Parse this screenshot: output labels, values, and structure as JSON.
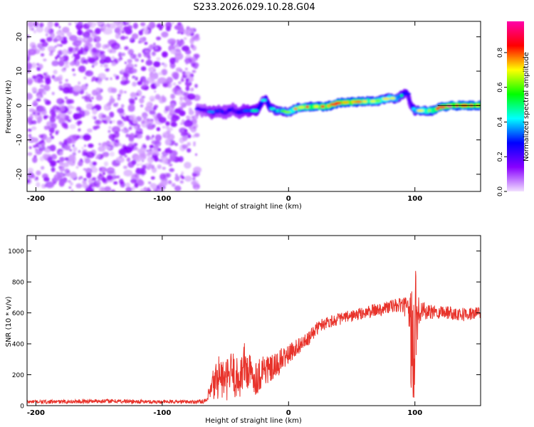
{
  "title": "S233.2026.029.10.28.G04",
  "chart_data": [
    {
      "type": "heatmap",
      "panel": "spectrogram",
      "xlabel": "Height of straight line (km)",
      "ylabel": "Frequency (Hz)",
      "xlim": [
        -207,
        152
      ],
      "ylim": [
        -25,
        24.5
      ],
      "xticks": [
        -200,
        -100,
        0,
        100
      ],
      "xtick_labels": [
        "-200",
        "-100",
        "0",
        "100"
      ],
      "yticks": [
        -20,
        -10,
        0,
        10,
        20
      ],
      "ytick_labels": [
        "-20",
        "-10",
        "0",
        "10",
        "20"
      ],
      "colorbar": {
        "label": "Normalized spectral amplitude",
        "range": [
          0,
          0.98
        ],
        "ticks": [
          0.0,
          0.2,
          0.4,
          0.6,
          0.8
        ],
        "tick_labels": [
          "0.0",
          "0.2",
          "0.4",
          "0.6",
          "0.8"
        ],
        "colormap": [
          "#f2e0ff",
          "#8800ff",
          "#0000ff",
          "#00ffff",
          "#00ff00",
          "#ffff00",
          "#ff0000",
          "#ff00aa"
        ]
      },
      "noise_region_x": [
        -207,
        -72
      ],
      "signal_track": {
        "x": [
          -72,
          -65,
          -60,
          -55,
          -50,
          -45,
          -40,
          -35,
          -30,
          -25,
          -20,
          -18,
          -15,
          -10,
          -5,
          0,
          5,
          10,
          20,
          30,
          40,
          50,
          60,
          70,
          80,
          85,
          90,
          93,
          95,
          97,
          100,
          105,
          110,
          115,
          120,
          130,
          140,
          152
        ],
        "y": [
          -1,
          -1.5,
          -2,
          -1.5,
          -2,
          -1,
          -2,
          -1.5,
          -1.5,
          -1.5,
          1.5,
          2,
          -0.5,
          -1.5,
          -1.5,
          -2,
          -1,
          -0.5,
          -0.3,
          -0.3,
          0.8,
          1.0,
          1.2,
          1.3,
          2.2,
          2.0,
          3.0,
          4.0,
          2.5,
          0,
          -1.5,
          -1.5,
          -1.5,
          -1.5,
          -0.5,
          0,
          0,
          0
        ],
        "amplitude": [
          0.2,
          0.25,
          0.35,
          0.3,
          0.3,
          0.3,
          0.3,
          0.35,
          0.4,
          0.45,
          0.4,
          0.35,
          0.45,
          0.5,
          0.55,
          0.6,
          0.7,
          0.75,
          0.8,
          0.8,
          0.85,
          0.85,
          0.75,
          0.7,
          0.65,
          0.6,
          0.5,
          0.35,
          0.3,
          0.3,
          0.55,
          0.65,
          0.7,
          0.75,
          0.85,
          0.9,
          0.9,
          0.85
        ]
      }
    },
    {
      "type": "line",
      "panel": "snr",
      "xlabel": "Height of straight line (km)",
      "ylabel": "SNR (10 * v/v)",
      "xlim": [
        -207,
        152
      ],
      "ylim": [
        0,
        1100
      ],
      "xticks": [
        -200,
        -100,
        0,
        100
      ],
      "xtick_labels": [
        "-200",
        "-100",
        "0",
        "100"
      ],
      "yticks": [
        0,
        200,
        400,
        600,
        800,
        1000
      ],
      "ytick_labels": [
        "0",
        "200",
        "400",
        "600",
        "800",
        "1000"
      ],
      "series": [
        {
          "name": "SNR",
          "color": "#e8332b",
          "x": [
            -207,
            -180,
            -150,
            -130,
            -110,
            -90,
            -75,
            -65,
            -60,
            -55,
            -50,
            -45,
            -40,
            -35,
            -30,
            -25,
            -20,
            -15,
            -10,
            -5,
            0,
            5,
            10,
            15,
            20,
            25,
            30,
            40,
            50,
            60,
            70,
            80,
            90,
            95,
            97,
            99,
            101,
            103,
            105,
            110,
            120,
            130,
            140,
            152
          ],
          "values": [
            25,
            25,
            30,
            28,
            25,
            25,
            25,
            30,
            120,
            200,
            150,
            220,
            160,
            260,
            200,
            180,
            240,
            230,
            250,
            300,
            330,
            370,
            400,
            420,
            480,
            520,
            540,
            560,
            580,
            600,
            620,
            640,
            650,
            620,
            450,
            300,
            600,
            650,
            620,
            600,
            610,
            600,
            590,
            600
          ],
          "noise_amplitude": [
            12,
            12,
            14,
            14,
            12,
            12,
            12,
            15,
            120,
            150,
            130,
            150,
            140,
            160,
            130,
            110,
            120,
            90,
            90,
            80,
            60,
            60,
            50,
            50,
            45,
            40,
            40,
            40,
            40,
            40,
            45,
            45,
            50,
            80,
            350,
            450,
            400,
            150,
            60,
            50,
            45,
            45,
            45,
            40
          ]
        }
      ]
    }
  ]
}
